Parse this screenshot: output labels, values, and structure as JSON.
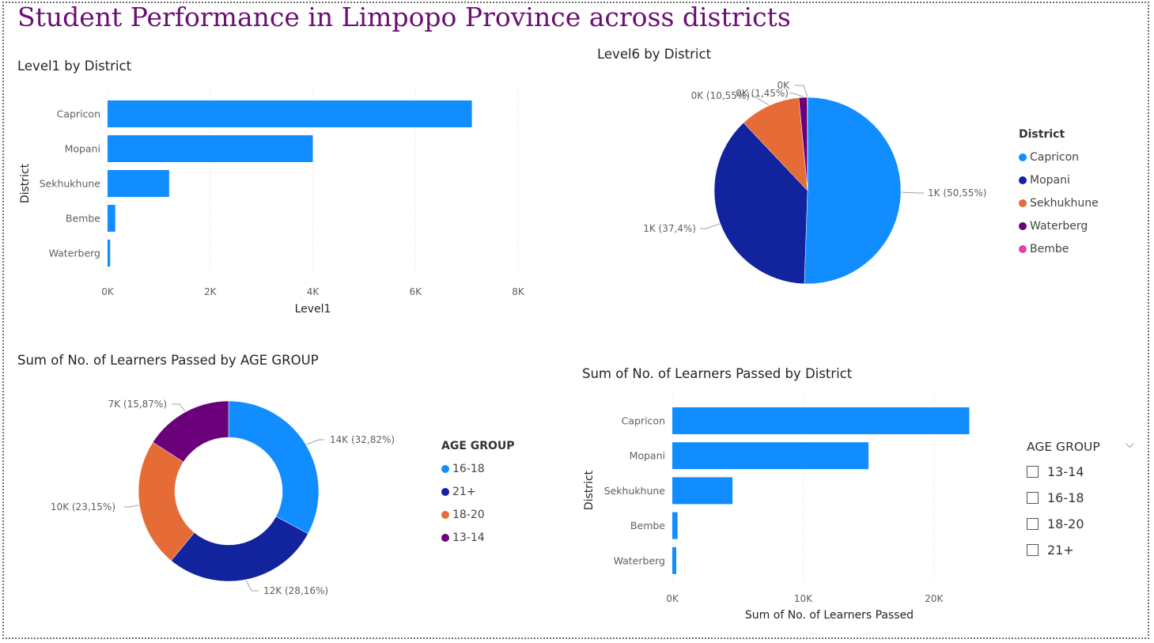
{
  "page_title": "Student Performance in Limpopo Province across districts",
  "colors": {
    "Capricon": "#118dff",
    "Mopani": "#12239e",
    "Sekhukhune": "#e66c37",
    "Waterberg": "#6b007b",
    "Bembe": "#e044a7",
    "16-18": "#118dff",
    "21+": "#12239e",
    "18-20": "#e66c37",
    "13-14": "#6b007b",
    "bar": "#118dff"
  },
  "chart_data": [
    {
      "id": "level1",
      "type": "bar",
      "orientation": "horizontal",
      "title": "Level1 by District",
      "xlabel": "Level1",
      "ylabel": "District",
      "categories": [
        "Capricon",
        "Mopani",
        "Sekhukhune",
        "Bembe",
        "Waterberg"
      ],
      "values": [
        7100,
        4000,
        1200,
        150,
        50
      ],
      "xlim": [
        0,
        8000
      ],
      "xticks": [
        0,
        2000,
        4000,
        6000,
        8000
      ],
      "xtick_labels": [
        "0K",
        "2K",
        "4K",
        "6K",
        "8K"
      ],
      "grid": true
    },
    {
      "id": "level6",
      "type": "pie",
      "title": "Level6 by District",
      "legend_title": "District",
      "legend_position": "right",
      "slices": [
        {
          "name": "Capricon",
          "percent": 50.55,
          "label": "1K (50,55%)"
        },
        {
          "name": "Mopani",
          "percent": 37.4,
          "label": "1K (37,4%)"
        },
        {
          "name": "Sekhukhune",
          "percent": 10.55,
          "label": "0K (10,55%)"
        },
        {
          "name": "Waterberg",
          "percent": 1.45,
          "label": "0K (1,45%)"
        },
        {
          "name": "Bembe",
          "percent": 0.05,
          "label": "0K"
        }
      ],
      "legend": [
        "Capricon",
        "Mopani",
        "Sekhukhune",
        "Waterberg",
        "Bembe"
      ]
    },
    {
      "id": "age_donut",
      "type": "pie",
      "subtype": "donut",
      "title": "Sum of No. of Learners Passed by AGE GROUP",
      "legend_title": "AGE GROUP",
      "legend_position": "right",
      "slices": [
        {
          "name": "16-18",
          "percent": 32.82,
          "label": "14K (32,82%)"
        },
        {
          "name": "21+",
          "percent": 28.16,
          "label": "12K (28,16%)"
        },
        {
          "name": "18-20",
          "percent": 23.15,
          "label": "10K (23,15%)"
        },
        {
          "name": "13-14",
          "percent": 15.87,
          "label": "7K (15,87%)"
        }
      ],
      "legend": [
        "16-18",
        "21+",
        "18-20",
        "13-14"
      ]
    },
    {
      "id": "learners_district",
      "type": "bar",
      "orientation": "horizontal",
      "title": "Sum of No. of Learners Passed by District",
      "xlabel": "Sum of No. of Learners Passed",
      "ylabel": "District",
      "categories": [
        "Capricon",
        "Mopani",
        "Sekhukhune",
        "Bembe",
        "Waterberg"
      ],
      "values": [
        22700,
        15000,
        4600,
        400,
        300
      ],
      "xlim": [
        0,
        24000
      ],
      "xticks": [
        0,
        10000,
        20000
      ],
      "xtick_labels": [
        "0K",
        "10K",
        "20K"
      ],
      "grid": true
    }
  ],
  "slicer": {
    "title": "AGE GROUP",
    "chevron": "⌵",
    "options": [
      "13-14",
      "16-18",
      "18-20",
      "21+"
    ]
  }
}
